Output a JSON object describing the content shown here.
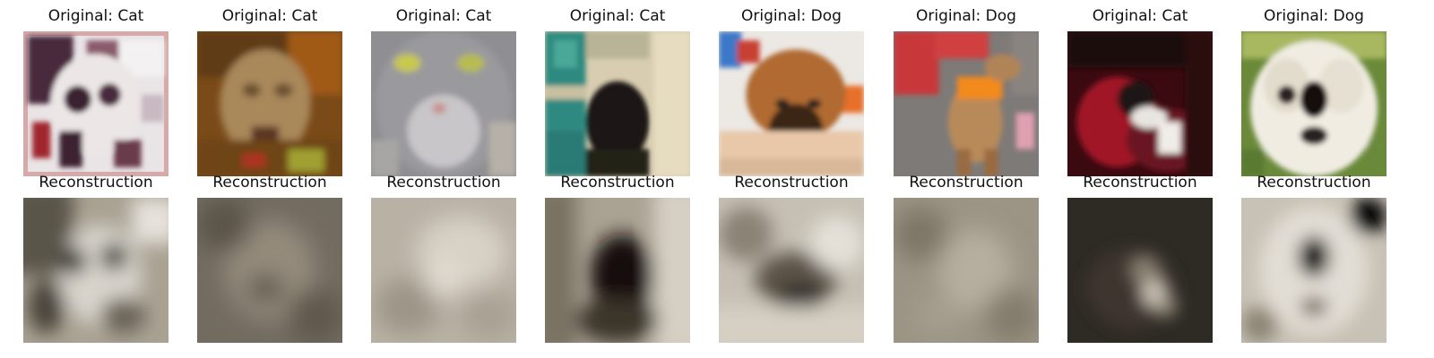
{
  "figure": {
    "columns": 8,
    "originals": [
      {
        "title": "Original: Cat",
        "label": "Cat"
      },
      {
        "title": "Original: Cat",
        "label": "Cat"
      },
      {
        "title": "Original: Cat",
        "label": "Cat"
      },
      {
        "title": "Original: Cat",
        "label": "Cat"
      },
      {
        "title": "Original: Dog",
        "label": "Dog"
      },
      {
        "title": "Original: Dog",
        "label": "Dog"
      },
      {
        "title": "Original: Cat",
        "label": "Cat"
      },
      {
        "title": "Original: Dog",
        "label": "Dog"
      }
    ],
    "reconstructions": [
      {
        "title": "Reconstruction"
      },
      {
        "title": "Reconstruction"
      },
      {
        "title": "Reconstruction"
      },
      {
        "title": "Reconstruction"
      },
      {
        "title": "Reconstruction"
      },
      {
        "title": "Reconstruction"
      },
      {
        "title": "Reconstruction"
      },
      {
        "title": "Reconstruction"
      }
    ]
  }
}
